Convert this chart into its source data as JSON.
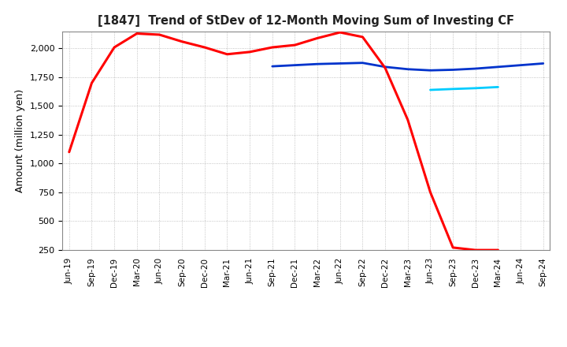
{
  "title": "[1847]  Trend of StDev of 12-Month Moving Sum of Investing CF",
  "ylabel": "Amount (million yen)",
  "background_color": "#ffffff",
  "plot_bg_color": "#ffffff",
  "grid_color": "#aaaaaa",
  "ylim": [
    250,
    2150
  ],
  "yticks": [
    250,
    500,
    750,
    1000,
    1250,
    1500,
    1750,
    2000
  ],
  "x_labels": [
    "Jun-19",
    "Sep-19",
    "Dec-19",
    "Mar-20",
    "Jun-20",
    "Sep-20",
    "Dec-20",
    "Mar-21",
    "Jun-21",
    "Sep-21",
    "Dec-21",
    "Mar-22",
    "Jun-22",
    "Sep-22",
    "Dec-22",
    "Mar-23",
    "Jun-23",
    "Sep-23",
    "Dec-23",
    "Mar-24",
    "Jun-24",
    "Sep-24"
  ],
  "series_3yr": {
    "color": "#ff0000",
    "linewidth": 2.2,
    "x": [
      0,
      1,
      2,
      3,
      4,
      5,
      6,
      7,
      8,
      9,
      10,
      11,
      12,
      13,
      14,
      15,
      16,
      17,
      18,
      19
    ],
    "y": [
      1100,
      1700,
      2010,
      2130,
      2120,
      2060,
      2010,
      1950,
      1970,
      2010,
      2030,
      2090,
      2140,
      2100,
      1830,
      1380,
      750,
      270,
      248,
      248
    ]
  },
  "series_5yr": {
    "color": "#0033cc",
    "linewidth": 2.0,
    "x": [
      9,
      10,
      11,
      12,
      13,
      14,
      15,
      16,
      17,
      18,
      19,
      20,
      21
    ],
    "y": [
      1845,
      1855,
      1865,
      1870,
      1875,
      1840,
      1820,
      1810,
      1815,
      1825,
      1840,
      1855,
      1870
    ]
  },
  "series_7yr": {
    "color": "#00ccff",
    "linewidth": 2.0,
    "x": [
      16,
      17,
      18,
      19
    ],
    "y": [
      1640,
      1648,
      1655,
      1665
    ]
  },
  "series_10yr": {
    "color": "#008000",
    "linewidth": 2.0,
    "x": [],
    "y": []
  }
}
